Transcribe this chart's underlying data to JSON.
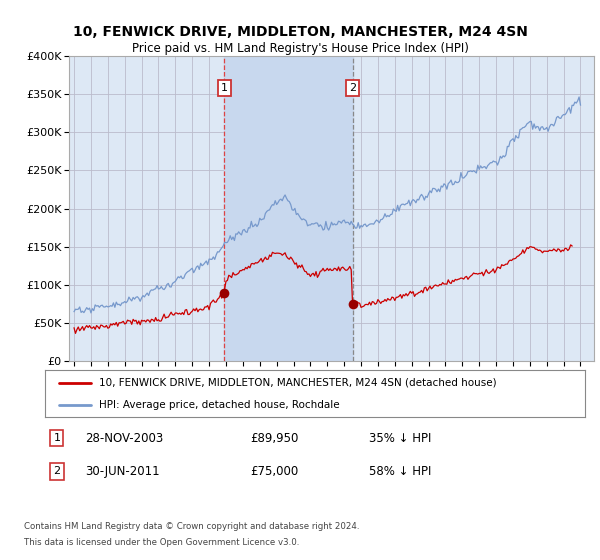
{
  "title": "10, FENWICK DRIVE, MIDDLETON, MANCHESTER, M24 4SN",
  "subtitle": "Price paid vs. HM Land Registry's House Price Index (HPI)",
  "background_color": "#ffffff",
  "plot_bg_color": "#dde8f5",
  "grid_color": "#bbbbcc",
  "legend_label_red": "10, FENWICK DRIVE, MIDDLETON, MANCHESTER, M24 4SN (detached house)",
  "legend_label_blue": "HPI: Average price, detached house, Rochdale",
  "sale1_year": 2003.9,
  "sale1_price": 89950,
  "sale2_year": 2011.5,
  "sale2_price": 75000,
  "footer_line1": "Contains HM Land Registry data © Crown copyright and database right 2024.",
  "footer_line2": "This data is licensed under the Open Government Licence v3.0.",
  "annotation1_date": "28-NOV-2003",
  "annotation1_price": "£89,950",
  "annotation1_hpi": "35% ↓ HPI",
  "annotation2_date": "30-JUN-2011",
  "annotation2_price": "£75,000",
  "annotation2_hpi": "58% ↓ HPI",
  "hpi_color": "#7799cc",
  "price_color": "#cc0000",
  "vline1_color": "#dd4444",
  "vline2_color": "#888888",
  "dot_color": "#990000",
  "span_color": "#c8d8ee",
  "ylim": [
    0,
    400000
  ],
  "yticks": [
    0,
    50000,
    100000,
    150000,
    200000,
    250000,
    300000,
    350000,
    400000
  ]
}
